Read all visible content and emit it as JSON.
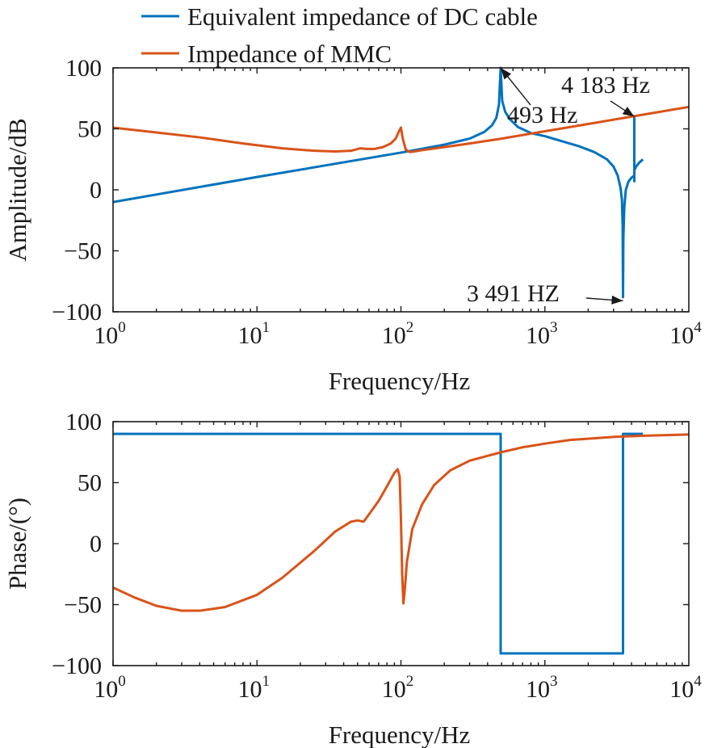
{
  "legend": {
    "items": [
      {
        "label": "Equivalent impedance of DC cable",
        "color": "#0072BD"
      },
      {
        "label": "Impedance of MMC",
        "color": "#D95319"
      }
    ]
  },
  "chart_data": [
    {
      "type": "line",
      "xscale": "log",
      "xlim": [
        1,
        10000
      ],
      "ylim": [
        -100,
        100
      ],
      "xlabel": "Frequency/Hz",
      "ylabel": "Amplitude/dB",
      "x_ticks": [
        {
          "base": "10",
          "exp": "0"
        },
        {
          "base": "10",
          "exp": "1"
        },
        {
          "base": "10",
          "exp": "2"
        },
        {
          "base": "10",
          "exp": "3"
        },
        {
          "base": "10",
          "exp": "4"
        }
      ],
      "y_ticks": [
        "100",
        "50",
        "0",
        "−50",
        "−100"
      ],
      "grid": false,
      "series": [
        {
          "name": "Equivalent impedance of DC cable",
          "color": "#0072BD",
          "x": [
            1,
            10,
            100,
            200,
            300,
            380,
            430,
            460,
            480,
            493,
            505,
            530,
            570,
            650,
            800,
            1000,
            1300,
            1700,
            2200,
            2700,
            3000,
            3200,
            3350,
            3430,
            3470,
            3491,
            3510,
            3560,
            3650,
            3800,
            4000,
            4150,
            4183,
            4183,
            4183,
            4183,
            4300,
            4500,
            4800
          ],
          "y": [
            -10,
            10.5,
            30.5,
            37,
            42,
            47.5,
            53,
            59,
            70,
            100,
            73,
            64,
            58,
            51.5,
            46.5,
            44,
            40,
            36,
            31,
            25,
            19,
            12,
            2,
            -8,
            -30,
            -88,
            -40,
            -15,
            0,
            6.5,
            10,
            11.5,
            12,
            60,
            7,
            16,
            19,
            22,
            25
          ]
        },
        {
          "name": "Impedance of MMC",
          "color": "#D95319",
          "x": [
            1,
            2,
            4,
            8,
            15,
            25,
            35,
            45,
            52,
            58,
            65,
            75,
            85,
            92,
            97,
            100,
            103,
            108,
            115,
            125,
            140,
            200,
            300,
            500,
            1000,
            2000,
            4000,
            10000
          ],
          "y": [
            51,
            47,
            43,
            38,
            34,
            32,
            31.5,
            32,
            34,
            33.5,
            33.5,
            35,
            38,
            42,
            48,
            51,
            42,
            33,
            31,
            31.5,
            32.5,
            35,
            38,
            42,
            48,
            54,
            60,
            68
          ]
        }
      ],
      "annotations": [
        {
          "text": "493 Hz",
          "x": 493,
          "y": 100
        },
        {
          "text": "4 183 Hz",
          "x": 4183,
          "y": 60
        },
        {
          "text": "3 491 HZ",
          "x": 3491,
          "y": -91
        }
      ]
    },
    {
      "type": "line",
      "xscale": "log",
      "xlim": [
        1,
        10000
      ],
      "ylim": [
        -100,
        100
      ],
      "xlabel": "Frequency/Hz",
      "ylabel": "Phase/(°)",
      "x_ticks": [
        {
          "base": "10",
          "exp": "0"
        },
        {
          "base": "10",
          "exp": "1"
        },
        {
          "base": "10",
          "exp": "2"
        },
        {
          "base": "10",
          "exp": "3"
        },
        {
          "base": "10",
          "exp": "4"
        }
      ],
      "y_ticks": [
        "100",
        "50",
        "0",
        "−50",
        "−100"
      ],
      "grid": false,
      "series": [
        {
          "name": "Equivalent impedance of DC cable",
          "color": "#0072BD",
          "x": [
            1,
            493,
            493,
            3491,
            3491,
            4800
          ],
          "y": [
            90,
            90,
            -90,
            -90,
            90,
            90
          ]
        },
        {
          "name": "Impedance of MMC",
          "color": "#D95319",
          "x": [
            1,
            1.4,
            2,
            3,
            4,
            6,
            10,
            15,
            25,
            35,
            45,
            50,
            55,
            60,
            70,
            80,
            90,
            95,
            98,
            100,
            102,
            104,
            106,
            110,
            120,
            140,
            170,
            220,
            300,
            400,
            500,
            700,
            1000,
            1500,
            2000,
            3000,
            5000,
            10000
          ],
          "y": [
            -36,
            -44,
            -51,
            -55,
            -55,
            -52,
            -42,
            -28,
            -6,
            10,
            18,
            19,
            18,
            24,
            35,
            47,
            58,
            61,
            55,
            20,
            -25,
            -49,
            -40,
            -15,
            12,
            32,
            48,
            60,
            68,
            72,
            75,
            79,
            82,
            85,
            86,
            87.5,
            88.5,
            89.5
          ]
        }
      ],
      "annotations": []
    }
  ]
}
